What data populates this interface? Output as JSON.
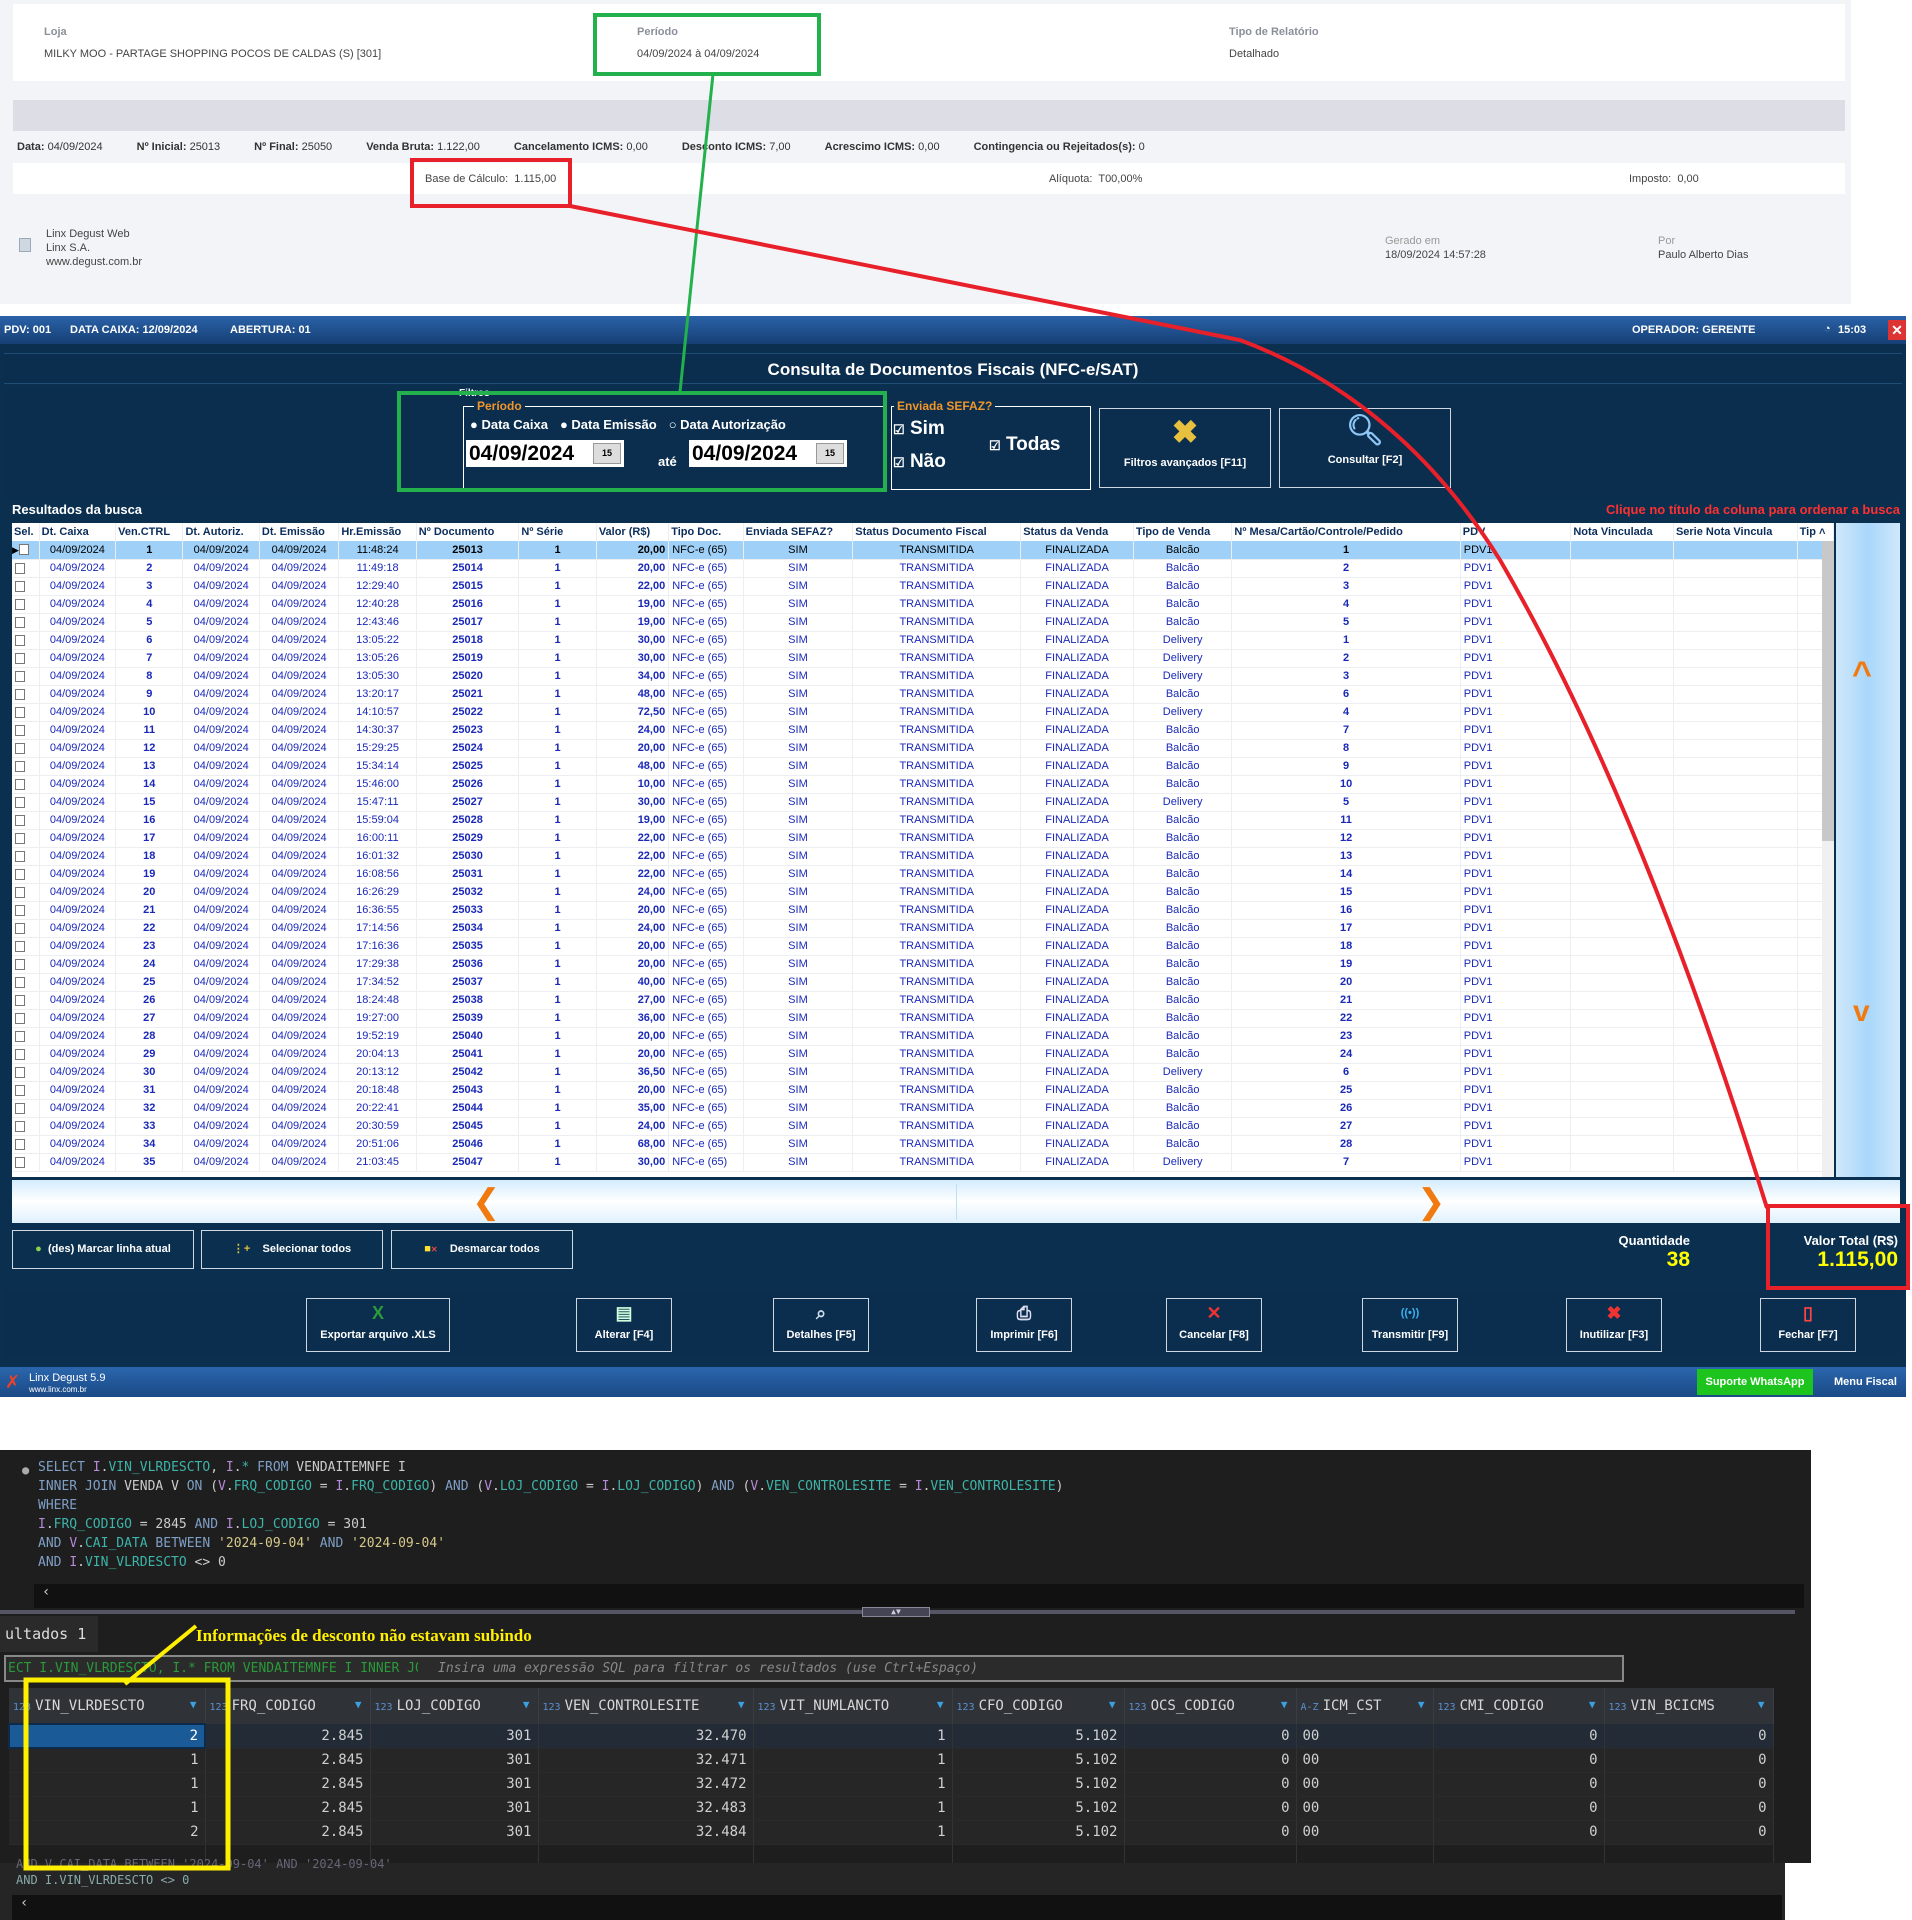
{
  "report": {
    "loja_label": "Loja",
    "loja_value": "MILKY MOO - PARTAGE SHOPPING POCOS DE CALDAS (S) [301]",
    "periodo_label": "Período",
    "periodo_value": "04/09/2024 à 04/09/2024",
    "tipo_label": "Tipo de Relatório",
    "tipo_value": "Detalhado",
    "stats": [
      [
        "Data:",
        "04/09/2024"
      ],
      [
        "Nº Inicial:",
        "25013"
      ],
      [
        "Nº Final:",
        "25050"
      ],
      [
        "Venda Bruta:",
        "1.122,00"
      ],
      [
        "Cancelamento ICMS:",
        "0,00"
      ],
      [
        "Desconto ICMS:",
        "7,00"
      ],
      [
        "Acrescimo ICMS:",
        "0,00"
      ],
      [
        "Contingencia ou Rejeitados(s):",
        "0"
      ]
    ],
    "base_label": "Base de Cálculo:",
    "base_value": "1.115,00",
    "aliquota_label": "Alíquota:",
    "aliquota_value": "T00,00%",
    "imposto_label": "Imposto:",
    "imposto_value": "0,00",
    "footer_lines": [
      "Linx Degust Web",
      "Linx S.A.",
      "www.degust.com.br"
    ],
    "gerado_label": "Gerado em",
    "gerado_value": "18/09/2024 14:57:28",
    "por_label": "Por",
    "por_value": "Paulo Alberto Dias"
  },
  "app": {
    "topbar": {
      "pdv": "PDV: 001",
      "data_caixa": "DATA CAIXA: 12/09/2024",
      "abertura": "ABERTURA: 01",
      "operador": "OPERADOR: GERENTE",
      "clock": "15:03"
    },
    "title": "Consulta de Documentos Fiscais (NFC-e/SAT)",
    "filters": {
      "group_label": "Filtros",
      "periodo_label": "Período",
      "radios": [
        "Data Caixa",
        "Data Emissão",
        "Data Autorização"
      ],
      "date_from": "04/09/2024",
      "ate": "até",
      "date_to": "04/09/2024",
      "sefaz_label": "Enviada SEFAZ?",
      "sim": "Sim",
      "nao": "Não",
      "todas": "Todas",
      "filtros_avancados": "Filtros avançados [F11]",
      "consultar": "Consultar [F2]"
    },
    "results_label": "Resultados da busca",
    "sort_hint": "Clique no título da coluna para ordenar a busca",
    "columns": [
      "Sel.",
      "Dt. Caixa",
      "Ven.CTRL",
      "Dt. Autoriz.",
      "Dt. Emissão",
      "Hr.Emissão",
      "Nº Documento",
      "Nº Série",
      "Valor (R$)",
      "Tipo Doc.",
      "Enviada SEFAZ?",
      "Status Documento Fiscal",
      "Status da Venda",
      "Tipo de Venda",
      "Nº Mesa/Cartão/Controle/Pedido",
      "PDV",
      "Nota Vinculada",
      "Serie Nota Vincula",
      "Tip"
    ],
    "rows": [
      [
        "04/09/2024",
        "1",
        "04/09/2024",
        "04/09/2024",
        "11:48:24",
        "25013",
        "1",
        "20,00",
        "NFC-e (65)",
        "SIM",
        "TRANSMITIDA",
        "FINALIZADA",
        "Balcão",
        "1",
        "PDV1"
      ],
      [
        "04/09/2024",
        "2",
        "04/09/2024",
        "04/09/2024",
        "11:49:18",
        "25014",
        "1",
        "20,00",
        "NFC-e (65)",
        "SIM",
        "TRANSMITIDA",
        "FINALIZADA",
        "Balcão",
        "2",
        "PDV1"
      ],
      [
        "04/09/2024",
        "3",
        "04/09/2024",
        "04/09/2024",
        "12:29:40",
        "25015",
        "1",
        "22,00",
        "NFC-e (65)",
        "SIM",
        "TRANSMITIDA",
        "FINALIZADA",
        "Balcão",
        "3",
        "PDV1"
      ],
      [
        "04/09/2024",
        "4",
        "04/09/2024",
        "04/09/2024",
        "12:40:28",
        "25016",
        "1",
        "19,00",
        "NFC-e (65)",
        "SIM",
        "TRANSMITIDA",
        "FINALIZADA",
        "Balcão",
        "4",
        "PDV1"
      ],
      [
        "04/09/2024",
        "5",
        "04/09/2024",
        "04/09/2024",
        "12:43:46",
        "25017",
        "1",
        "19,00",
        "NFC-e (65)",
        "SIM",
        "TRANSMITIDA",
        "FINALIZADA",
        "Balcão",
        "5",
        "PDV1"
      ],
      [
        "04/09/2024",
        "6",
        "04/09/2024",
        "04/09/2024",
        "13:05:22",
        "25018",
        "1",
        "30,00",
        "NFC-e (65)",
        "SIM",
        "TRANSMITIDA",
        "FINALIZADA",
        "Delivery",
        "1",
        "PDV1"
      ],
      [
        "04/09/2024",
        "7",
        "04/09/2024",
        "04/09/2024",
        "13:05:26",
        "25019",
        "1",
        "30,00",
        "NFC-e (65)",
        "SIM",
        "TRANSMITIDA",
        "FINALIZADA",
        "Delivery",
        "2",
        "PDV1"
      ],
      [
        "04/09/2024",
        "8",
        "04/09/2024",
        "04/09/2024",
        "13:05:30",
        "25020",
        "1",
        "34,00",
        "NFC-e (65)",
        "SIM",
        "TRANSMITIDA",
        "FINALIZADA",
        "Delivery",
        "3",
        "PDV1"
      ],
      [
        "04/09/2024",
        "9",
        "04/09/2024",
        "04/09/2024",
        "13:20:17",
        "25021",
        "1",
        "48,00",
        "NFC-e (65)",
        "SIM",
        "TRANSMITIDA",
        "FINALIZADA",
        "Balcão",
        "6",
        "PDV1"
      ],
      [
        "04/09/2024",
        "10",
        "04/09/2024",
        "04/09/2024",
        "14:10:57",
        "25022",
        "1",
        "72,50",
        "NFC-e (65)",
        "SIM",
        "TRANSMITIDA",
        "FINALIZADA",
        "Delivery",
        "4",
        "PDV1"
      ],
      [
        "04/09/2024",
        "11",
        "04/09/2024",
        "04/09/2024",
        "14:30:37",
        "25023",
        "1",
        "24,00",
        "NFC-e (65)",
        "SIM",
        "TRANSMITIDA",
        "FINALIZADA",
        "Balcão",
        "7",
        "PDV1"
      ],
      [
        "04/09/2024",
        "12",
        "04/09/2024",
        "04/09/2024",
        "15:29:25",
        "25024",
        "1",
        "20,00",
        "NFC-e (65)",
        "SIM",
        "TRANSMITIDA",
        "FINALIZADA",
        "Balcão",
        "8",
        "PDV1"
      ],
      [
        "04/09/2024",
        "13",
        "04/09/2024",
        "04/09/2024",
        "15:34:14",
        "25025",
        "1",
        "48,00",
        "NFC-e (65)",
        "SIM",
        "TRANSMITIDA",
        "FINALIZADA",
        "Balcão",
        "9",
        "PDV1"
      ],
      [
        "04/09/2024",
        "14",
        "04/09/2024",
        "04/09/2024",
        "15:46:00",
        "25026",
        "1",
        "10,00",
        "NFC-e (65)",
        "SIM",
        "TRANSMITIDA",
        "FINALIZADA",
        "Balcão",
        "10",
        "PDV1"
      ],
      [
        "04/09/2024",
        "15",
        "04/09/2024",
        "04/09/2024",
        "15:47:11",
        "25027",
        "1",
        "30,00",
        "NFC-e (65)",
        "SIM",
        "TRANSMITIDA",
        "FINALIZADA",
        "Delivery",
        "5",
        "PDV1"
      ],
      [
        "04/09/2024",
        "16",
        "04/09/2024",
        "04/09/2024",
        "15:59:04",
        "25028",
        "1",
        "19,00",
        "NFC-e (65)",
        "SIM",
        "TRANSMITIDA",
        "FINALIZADA",
        "Balcão",
        "11",
        "PDV1"
      ],
      [
        "04/09/2024",
        "17",
        "04/09/2024",
        "04/09/2024",
        "16:00:11",
        "25029",
        "1",
        "22,00",
        "NFC-e (65)",
        "SIM",
        "TRANSMITIDA",
        "FINALIZADA",
        "Balcão",
        "12",
        "PDV1"
      ],
      [
        "04/09/2024",
        "18",
        "04/09/2024",
        "04/09/2024",
        "16:01:32",
        "25030",
        "1",
        "22,00",
        "NFC-e (65)",
        "SIM",
        "TRANSMITIDA",
        "FINALIZADA",
        "Balcão",
        "13",
        "PDV1"
      ],
      [
        "04/09/2024",
        "19",
        "04/09/2024",
        "04/09/2024",
        "16:08:56",
        "25031",
        "1",
        "22,00",
        "NFC-e (65)",
        "SIM",
        "TRANSMITIDA",
        "FINALIZADA",
        "Balcão",
        "14",
        "PDV1"
      ],
      [
        "04/09/2024",
        "20",
        "04/09/2024",
        "04/09/2024",
        "16:26:29",
        "25032",
        "1",
        "24,00",
        "NFC-e (65)",
        "SIM",
        "TRANSMITIDA",
        "FINALIZADA",
        "Balcão",
        "15",
        "PDV1"
      ],
      [
        "04/09/2024",
        "21",
        "04/09/2024",
        "04/09/2024",
        "16:36:55",
        "25033",
        "1",
        "20,00",
        "NFC-e (65)",
        "SIM",
        "TRANSMITIDA",
        "FINALIZADA",
        "Balcão",
        "16",
        "PDV1"
      ],
      [
        "04/09/2024",
        "22",
        "04/09/2024",
        "04/09/2024",
        "17:14:56",
        "25034",
        "1",
        "24,00",
        "NFC-e (65)",
        "SIM",
        "TRANSMITIDA",
        "FINALIZADA",
        "Balcão",
        "17",
        "PDV1"
      ],
      [
        "04/09/2024",
        "23",
        "04/09/2024",
        "04/09/2024",
        "17:16:36",
        "25035",
        "1",
        "20,00",
        "NFC-e (65)",
        "SIM",
        "TRANSMITIDA",
        "FINALIZADA",
        "Balcão",
        "18",
        "PDV1"
      ],
      [
        "04/09/2024",
        "24",
        "04/09/2024",
        "04/09/2024",
        "17:29:38",
        "25036",
        "1",
        "20,00",
        "NFC-e (65)",
        "SIM",
        "TRANSMITIDA",
        "FINALIZADA",
        "Balcão",
        "19",
        "PDV1"
      ],
      [
        "04/09/2024",
        "25",
        "04/09/2024",
        "04/09/2024",
        "17:34:52",
        "25037",
        "1",
        "40,00",
        "NFC-e (65)",
        "SIM",
        "TRANSMITIDA",
        "FINALIZADA",
        "Balcão",
        "20",
        "PDV1"
      ],
      [
        "04/09/2024",
        "26",
        "04/09/2024",
        "04/09/2024",
        "18:24:48",
        "25038",
        "1",
        "27,00",
        "NFC-e (65)",
        "SIM",
        "TRANSMITIDA",
        "FINALIZADA",
        "Balcão",
        "21",
        "PDV1"
      ],
      [
        "04/09/2024",
        "27",
        "04/09/2024",
        "04/09/2024",
        "19:27:00",
        "25039",
        "1",
        "36,00",
        "NFC-e (65)",
        "SIM",
        "TRANSMITIDA",
        "FINALIZADA",
        "Balcão",
        "22",
        "PDV1"
      ],
      [
        "04/09/2024",
        "28",
        "04/09/2024",
        "04/09/2024",
        "19:52:19",
        "25040",
        "1",
        "20,00",
        "NFC-e (65)",
        "SIM",
        "TRANSMITIDA",
        "FINALIZADA",
        "Balcão",
        "23",
        "PDV1"
      ],
      [
        "04/09/2024",
        "29",
        "04/09/2024",
        "04/09/2024",
        "20:04:13",
        "25041",
        "1",
        "20,00",
        "NFC-e (65)",
        "SIM",
        "TRANSMITIDA",
        "FINALIZADA",
        "Balcão",
        "24",
        "PDV1"
      ],
      [
        "04/09/2024",
        "30",
        "04/09/2024",
        "04/09/2024",
        "20:13:12",
        "25042",
        "1",
        "36,50",
        "NFC-e (65)",
        "SIM",
        "TRANSMITIDA",
        "FINALIZADA",
        "Delivery",
        "6",
        "PDV1"
      ],
      [
        "04/09/2024",
        "31",
        "04/09/2024",
        "04/09/2024",
        "20:18:48",
        "25043",
        "1",
        "20,00",
        "NFC-e (65)",
        "SIM",
        "TRANSMITIDA",
        "FINALIZADA",
        "Balcão",
        "25",
        "PDV1"
      ],
      [
        "04/09/2024",
        "32",
        "04/09/2024",
        "04/09/2024",
        "20:22:41",
        "25044",
        "1",
        "35,00",
        "NFC-e (65)",
        "SIM",
        "TRANSMITIDA",
        "FINALIZADA",
        "Balcão",
        "26",
        "PDV1"
      ],
      [
        "04/09/2024",
        "33",
        "04/09/2024",
        "04/09/2024",
        "20:30:59",
        "25045",
        "1",
        "24,00",
        "NFC-e (65)",
        "SIM",
        "TRANSMITIDA",
        "FINALIZADA",
        "Balcão",
        "27",
        "PDV1"
      ],
      [
        "04/09/2024",
        "34",
        "04/09/2024",
        "04/09/2024",
        "20:51:06",
        "25046",
        "1",
        "68,00",
        "NFC-e (65)",
        "SIM",
        "TRANSMITIDA",
        "FINALIZADA",
        "Balcão",
        "28",
        "PDV1"
      ],
      [
        "04/09/2024",
        "35",
        "04/09/2024",
        "04/09/2024",
        "21:03:45",
        "25047",
        "1",
        "30,00",
        "NFC-e (65)",
        "SIM",
        "TRANSMITIDA",
        "FINALIZADA",
        "Delivery",
        "7",
        "PDV1"
      ]
    ],
    "selection_buttons": [
      "(des) Marcar linha atual",
      "Selecionar todos",
      "Desmarcar todos"
    ],
    "quantidade_label": "Quantidade",
    "quantidade_value": "38",
    "valor_total_label": "Valor Total (R$)",
    "valor_total_value": "1.115,00",
    "actions": [
      {
        "label": "Exportar arquivo .XLS",
        "icon": "excel-icon"
      },
      {
        "label": "Alterar [F4]",
        "icon": "edit-icon"
      },
      {
        "label": "Detalhes [F5]",
        "icon": "details-icon"
      },
      {
        "label": "Imprimir [F6]",
        "icon": "printer-icon"
      },
      {
        "label": "Cancelar [F8]",
        "icon": "cancel-icon"
      },
      {
        "label": "Transmitir [F9]",
        "icon": "antenna-icon"
      },
      {
        "label": "Inutilizar [F3]",
        "icon": "void-icon"
      },
      {
        "label": "Fechar [F7]",
        "icon": "exit-door-icon"
      }
    ],
    "footer": {
      "product": "Linx Degust 5.9",
      "site": "www.linx.com.br",
      "whatsapp": "Suporte WhatsApp",
      "menu_fiscal": "Menu Fiscal"
    }
  },
  "sql": {
    "lines": [
      "SELECT I.VIN_VLRDESCTO, I.* FROM VENDAITEMNFE I",
      "INNER JOIN VENDA V ON (V.FRQ_CODIGO = I.FRQ_CODIGO) AND (V.LOJ_CODIGO = I.LOJ_CODIGO) AND (V.VEN_CONTROLESITE = I.VEN_CONTROLESITE)",
      "WHERE",
      "I.FRQ_CODIGO = 2845 AND I.LOJ_CODIGO = 301",
      "AND V.CAI_DATA BETWEEN '2024-09-04' AND '2024-09-04'",
      "AND I.VIN_VLRDESCTO <> 0"
    ],
    "results_tab": "ultados 1",
    "annotation": "Informações de desconto não estavam subindo",
    "query_preview": "ECT I.VIN_VLRDESCTO, I.* FROM VENDAITEMNFE I INNER JOIN",
    "filter_placeholder": "Insira uma expressão SQL para filtrar os resultados (use Ctrl+Espaço)",
    "columns": [
      [
        "123",
        "VIN_VLRDESCTO"
      ],
      [
        "123",
        "FRQ_CODIGO"
      ],
      [
        "123",
        "LOJ_CODIGO"
      ],
      [
        "123",
        "VEN_CONTROLESITE"
      ],
      [
        "123",
        "VIT_NUMLANCTO"
      ],
      [
        "123",
        "CFO_CODIGO"
      ],
      [
        "123",
        "OCS_CODIGO"
      ],
      [
        "A-Z",
        "ICM_CST"
      ],
      [
        "123",
        "CMI_CODIGO"
      ],
      [
        "123",
        "VIN_BCICMS"
      ]
    ],
    "rows": [
      [
        "2",
        "2.845",
        "301",
        "32.470",
        "1",
        "5.102",
        "0",
        "00",
        "0",
        "0"
      ],
      [
        "1",
        "2.845",
        "301",
        "32.471",
        "1",
        "5.102",
        "0",
        "00",
        "0",
        "0"
      ],
      [
        "1",
        "2.845",
        "301",
        "32.472",
        "1",
        "5.102",
        "0",
        "00",
        "0",
        "0"
      ],
      [
        "1",
        "2.845",
        "301",
        "32.483",
        "1",
        "5.102",
        "0",
        "00",
        "0",
        "0"
      ],
      [
        "2",
        "2.845",
        "301",
        "32.484",
        "1",
        "5.102",
        "0",
        "00",
        "0",
        "0"
      ]
    ],
    "bottom_lines": [
      "AND V.CAI_DATA BETWEEN '2024-09-04' AND '2024-09-04'",
      "AND I.VIN_VLRDESCTO <> 0"
    ]
  },
  "colors": {
    "highlight_green": "#22b14c",
    "highlight_red": "#e8202a",
    "highlight_yellow": "#ffef00",
    "app_navy": "#0c2e4e",
    "row_selected": "#9fd0f8",
    "value_yellow": "#ffff00"
  }
}
